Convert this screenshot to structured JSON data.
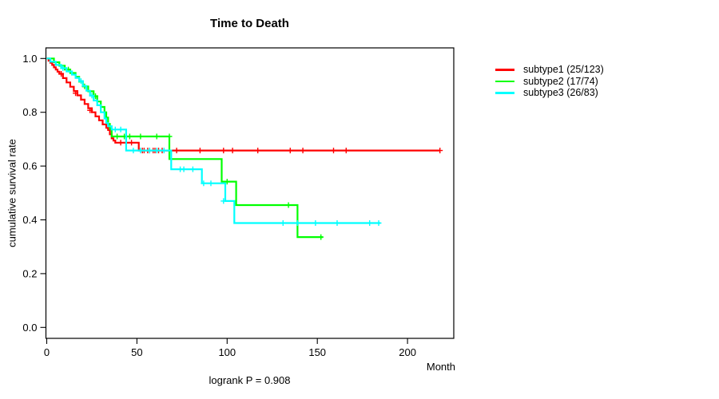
{
  "title": "Time to Death",
  "chart_data": {
    "type": "line",
    "subtype": "kaplan-meier-step-curves",
    "title": "Time to Death",
    "xlabel": "Month",
    "ylabel": "cumulative survival rate",
    "annotation": "logrank P = 0.908",
    "grid": false,
    "legend_position": "right-outside",
    "xlim": [
      0,
      226
    ],
    "ylim": [
      0.0,
      1.0
    ],
    "xticks": [
      0,
      50,
      100,
      150,
      200
    ],
    "xtick_labels": [
      "0",
      "50",
      "100",
      "150",
      "200"
    ],
    "yticks": [
      0.0,
      0.2,
      0.4,
      0.6,
      0.8,
      1.0
    ],
    "ytick_labels": [
      "0.0",
      "0.2",
      "0.4",
      "0.6",
      "0.8",
      "1.0"
    ],
    "axis_color": "#000000",
    "background_color": "#ffffff",
    "series": [
      {
        "name": "subtype1",
        "label": "subtype1 (25/123)",
        "events": 25,
        "n": 123,
        "color": "#ff0000",
        "end_month": 218,
        "steps": [
          [
            0,
            1.0
          ],
          [
            1,
            0.992
          ],
          [
            2,
            0.984
          ],
          [
            3,
            0.976
          ],
          [
            4,
            0.967
          ],
          [
            5,
            0.959
          ],
          [
            6,
            0.951
          ],
          [
            7,
            0.943
          ],
          [
            9,
            0.927
          ],
          [
            11,
            0.911
          ],
          [
            13,
            0.895
          ],
          [
            15,
            0.879
          ],
          [
            17,
            0.863
          ],
          [
            19,
            0.847
          ],
          [
            21,
            0.831
          ],
          [
            23,
            0.815
          ],
          [
            25,
            0.8
          ],
          [
            27,
            0.785
          ],
          [
            29,
            0.77
          ],
          [
            31,
            0.755
          ],
          [
            33,
            0.742
          ],
          [
            34,
            0.734
          ],
          [
            35,
            0.718
          ],
          [
            36,
            0.703
          ],
          [
            37,
            0.695
          ],
          [
            38,
            0.687
          ],
          [
            51,
            0.658
          ]
        ],
        "censors": [
          [
            8,
            0.943
          ],
          [
            16,
            0.871
          ],
          [
            24,
            0.807
          ],
          [
            41,
            0.687
          ],
          [
            44,
            0.687
          ],
          [
            47,
            0.687
          ],
          [
            53,
            0.658
          ],
          [
            54,
            0.658
          ],
          [
            56,
            0.658
          ],
          [
            57,
            0.658
          ],
          [
            59,
            0.658
          ],
          [
            60,
            0.658
          ],
          [
            62,
            0.658
          ],
          [
            64,
            0.658
          ],
          [
            72,
            0.658
          ],
          [
            85,
            0.658
          ],
          [
            98,
            0.658
          ],
          [
            103,
            0.658
          ],
          [
            117,
            0.658
          ],
          [
            135,
            0.658
          ],
          [
            142,
            0.658
          ],
          [
            159,
            0.658
          ],
          [
            166,
            0.658
          ],
          [
            218,
            0.658
          ]
        ]
      },
      {
        "name": "subtype2",
        "label": "subtype2 (17/74)",
        "events": 17,
        "n": 74,
        "color": "#00ff00",
        "end_month": 153,
        "steps": [
          [
            0,
            1.0
          ],
          [
            4,
            0.986
          ],
          [
            7,
            0.973
          ],
          [
            10,
            0.959
          ],
          [
            13,
            0.946
          ],
          [
            16,
            0.932
          ],
          [
            18,
            0.914
          ],
          [
            20,
            0.896
          ],
          [
            23,
            0.878
          ],
          [
            26,
            0.86
          ],
          [
            28,
            0.84
          ],
          [
            30,
            0.82
          ],
          [
            32,
            0.8
          ],
          [
            33,
            0.78
          ],
          [
            34,
            0.757
          ],
          [
            35,
            0.738
          ],
          [
            36,
            0.71
          ],
          [
            68,
            0.626
          ],
          [
            97,
            0.542
          ],
          [
            105,
            0.455
          ],
          [
            139,
            0.336
          ]
        ],
        "censors": [
          [
            12,
            0.959
          ],
          [
            21,
            0.896
          ],
          [
            27,
            0.86
          ],
          [
            39,
            0.71
          ],
          [
            43,
            0.71
          ],
          [
            46,
            0.71
          ],
          [
            52,
            0.71
          ],
          [
            61,
            0.71
          ],
          [
            68,
            0.71
          ],
          [
            100,
            0.542
          ],
          [
            134,
            0.455
          ],
          [
            152,
            0.336
          ]
        ]
      },
      {
        "name": "subtype3",
        "label": "subtype3 (26/83)",
        "events": 26,
        "n": 83,
        "color": "#00ffff",
        "end_month": 185,
        "steps": [
          [
            0,
            1.0
          ],
          [
            2,
            0.988
          ],
          [
            5,
            0.976
          ],
          [
            8,
            0.964
          ],
          [
            11,
            0.952
          ],
          [
            14,
            0.94
          ],
          [
            16,
            0.928
          ],
          [
            18,
            0.916
          ],
          [
            20,
            0.898
          ],
          [
            22,
            0.88
          ],
          [
            24,
            0.862
          ],
          [
            26,
            0.844
          ],
          [
            28,
            0.826
          ],
          [
            30,
            0.8
          ],
          [
            32,
            0.777
          ],
          [
            33,
            0.76
          ],
          [
            34,
            0.748
          ],
          [
            36,
            0.736
          ],
          [
            44,
            0.658
          ],
          [
            69,
            0.588
          ],
          [
            86,
            0.536
          ],
          [
            99,
            0.47
          ],
          [
            104,
            0.388
          ]
        ],
        "censors": [
          [
            9,
            0.964
          ],
          [
            19,
            0.916
          ],
          [
            25,
            0.862
          ],
          [
            38,
            0.736
          ],
          [
            41,
            0.736
          ],
          [
            48,
            0.658
          ],
          [
            52,
            0.658
          ],
          [
            57,
            0.658
          ],
          [
            61,
            0.658
          ],
          [
            65,
            0.658
          ],
          [
            74,
            0.588
          ],
          [
            76,
            0.588
          ],
          [
            81,
            0.588
          ],
          [
            87,
            0.536
          ],
          [
            91,
            0.536
          ],
          [
            98,
            0.47
          ],
          [
            131,
            0.388
          ],
          [
            139,
            0.388
          ],
          [
            149,
            0.388
          ],
          [
            161,
            0.388
          ],
          [
            179,
            0.388
          ],
          [
            184,
            0.388
          ]
        ]
      }
    ]
  }
}
